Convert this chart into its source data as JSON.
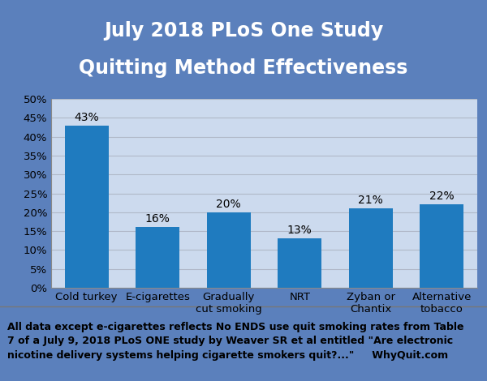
{
  "title_line1": "July 2018 PLoS One Study",
  "title_line2": "Quitting Method Effectiveness",
  "categories": [
    "Cold turkey",
    "E-cigarettes",
    "Gradually\ncut smoking",
    "NRT",
    "Zyban or\nChantix",
    "Alternative\ntobacco"
  ],
  "values": [
    43,
    16,
    20,
    13,
    21,
    22
  ],
  "labels": [
    "43%",
    "16%",
    "20%",
    "13%",
    "21%",
    "22%"
  ],
  "bar_color": "#1f7bbf",
  "title_bg_color": "#5b80bc",
  "title_text_color": "#ffffff",
  "plot_bg_color": "#ccdaee",
  "chart_area_bg": "#d9e5f3",
  "outer_bg_color": "#5b80bc",
  "footer_bg_color": "#ffffff",
  "footer_text_line1": "All data except e-cigarettes reflects No ENDS use quit smoking rates from Table",
  "footer_text_line2": "7 of a July 9, 2018 PLoS ONE study by Weaver SR et al entitled \"Are electronic",
  "footer_text_line3": "nicotine delivery systems helping cigarette smokers quit?...\"     WhyQuit.com",
  "ylim": [
    0,
    50
  ],
  "yticks": [
    0,
    5,
    10,
    15,
    20,
    25,
    30,
    35,
    40,
    45,
    50
  ],
  "yticklabels": [
    "0%",
    "5%",
    "10%",
    "15%",
    "20%",
    "25%",
    "30%",
    "35%",
    "40%",
    "45%",
    "50%"
  ],
  "grid_color": "#b0b8c8",
  "label_fontsize": 10,
  "title_fontsize": 17,
  "tick_fontsize": 9.5,
  "footer_fontsize": 9,
  "xlabel_fontsize": 9.5
}
